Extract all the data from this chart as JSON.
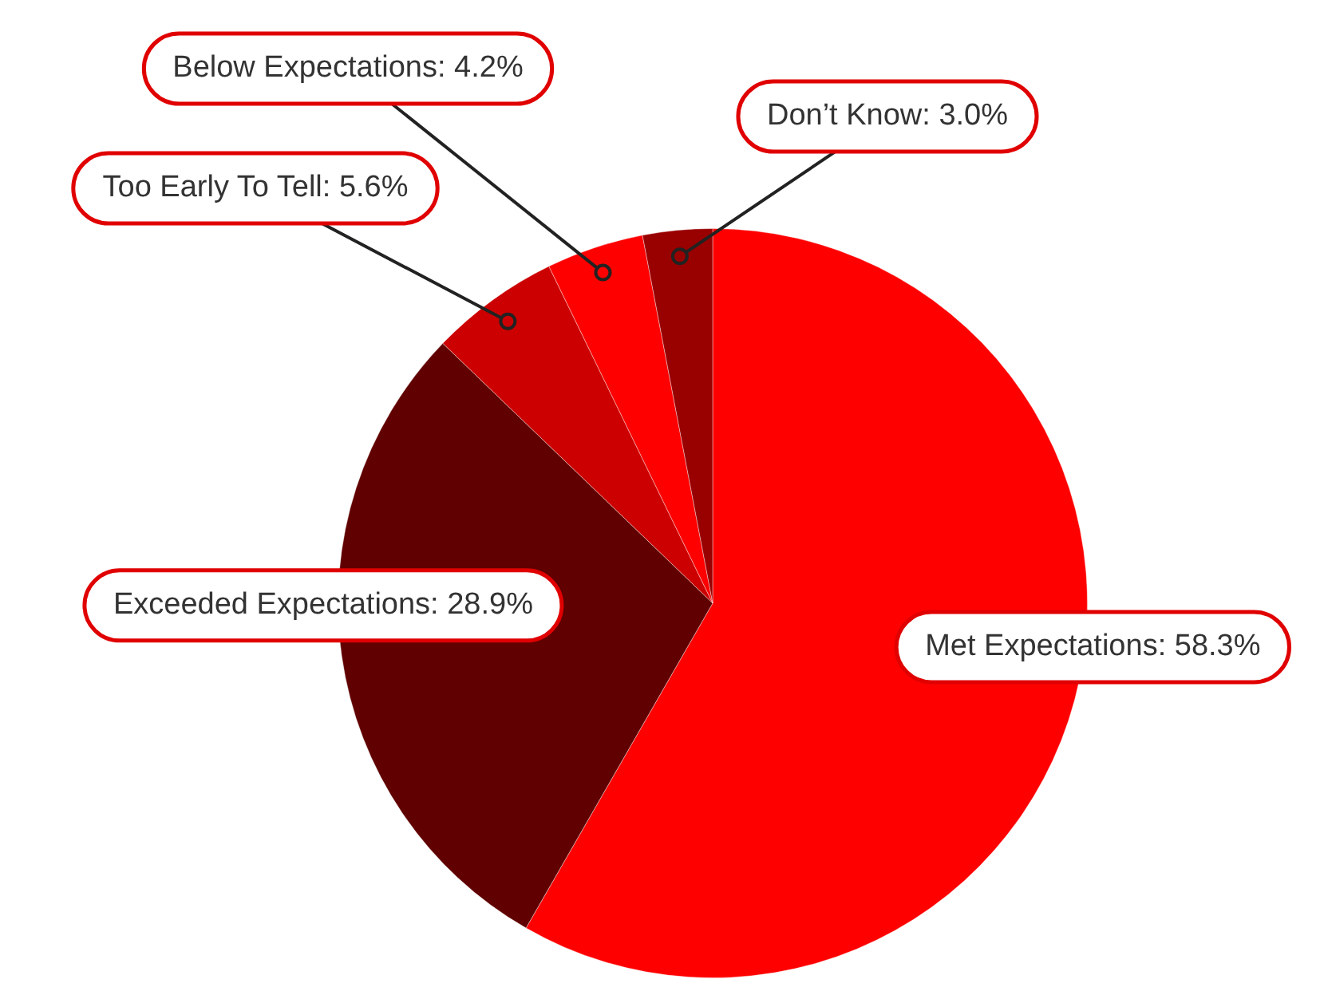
{
  "chart_data": {
    "type": "pie",
    "categories": [
      "Met Expectations",
      "Exceeded Expectations",
      "Too Early To Tell",
      "Below Expectations",
      "Don’t Know"
    ],
    "values": [
      58.3,
      28.9,
      5.6,
      4.2,
      3.0
    ],
    "value_labels": [
      "58.3%",
      "28.9%",
      "5.6%",
      "4.2%",
      "3.0%"
    ],
    "colors": [
      "#ff0000",
      "#600000",
      "#cc0000",
      "#ff0000",
      "#990000"
    ],
    "legend": false
  }
}
